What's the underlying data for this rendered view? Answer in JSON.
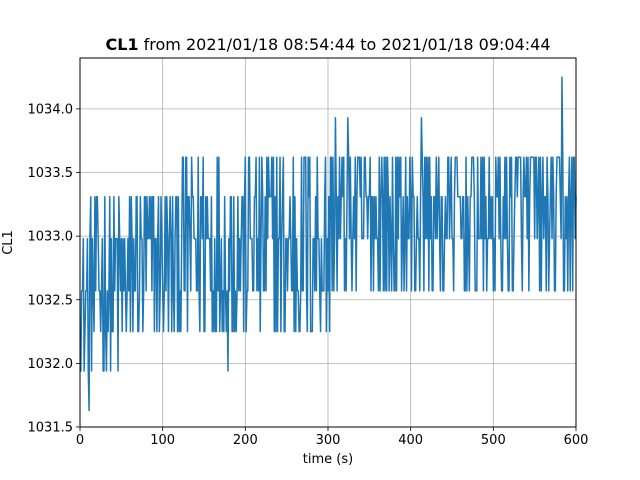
{
  "chart_data": {
    "type": "line",
    "title": {
      "bold": "CL1",
      "rest": " from 2021/01/18 08:54:44 to 2021/01/18 09:04:44"
    },
    "xlabel": "time (s)",
    "ylabel": "CL1",
    "xlim": [
      0,
      600
    ],
    "ylim": [
      1031.5,
      1034.4
    ],
    "x_ticks": [
      0,
      100,
      200,
      300,
      400,
      500,
      600
    ],
    "x_tick_labels": [
      "0",
      "100",
      "200",
      "300",
      "400",
      "500",
      "600"
    ],
    "y_ticks": [
      1031.5,
      1032.0,
      1032.5,
      1033.0,
      1033.5,
      1034.0
    ],
    "y_tick_labels": [
      "1031.5",
      "1032.0",
      "1032.5",
      "1033.0",
      "1033.5",
      "1034.0"
    ],
    "grid": true,
    "series": [
      {
        "color": "#1f77b4",
        "sample_interval_s": 1,
        "quantized_levels": [
          1031.63,
          1031.94,
          1032.25,
          1032.57,
          1032.98,
          1033.31,
          1033.62,
          1033.93,
          1034.25
        ],
        "envelope": [
          {
            "t": 0,
            "low": 1031.94,
            "high": 1033.0
          },
          {
            "t": 10,
            "low": 1031.94,
            "high": 1033.31
          },
          {
            "t": 60,
            "low": 1031.94,
            "high": 1033.31
          },
          {
            "t": 120,
            "low": 1032.25,
            "high": 1033.62
          },
          {
            "t": 200,
            "low": 1032.25,
            "high": 1033.62
          },
          {
            "t": 300,
            "low": 1032.25,
            "high": 1033.62
          },
          {
            "t": 400,
            "low": 1032.57,
            "high": 1033.62
          },
          {
            "t": 500,
            "low": 1032.57,
            "high": 1033.62
          },
          {
            "t": 600,
            "low": 1032.57,
            "high": 1033.62
          }
        ],
        "extremes": [
          {
            "t": 11,
            "y": 1031.63
          },
          {
            "t": 179,
            "y": 1031.94
          },
          {
            "t": 309,
            "y": 1033.93
          },
          {
            "t": 324,
            "y": 1033.93
          },
          {
            "t": 413,
            "y": 1033.93
          },
          {
            "t": 583,
            "y": 1034.25
          }
        ]
      }
    ]
  }
}
